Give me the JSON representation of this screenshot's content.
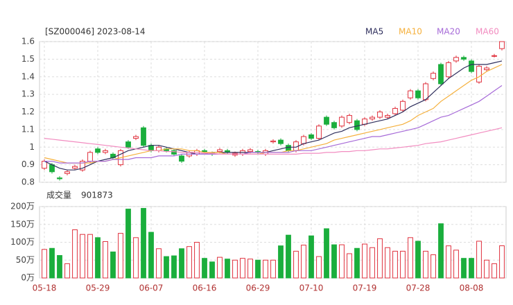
{
  "chart_data": {
    "type": "candlestick",
    "title": "[SZ000046] 2023-08-14",
    "categories": [
      "05-18",
      null,
      null,
      null,
      null,
      null,
      null,
      "05-29",
      null,
      null,
      null,
      null,
      null,
      null,
      "06-07",
      null,
      null,
      null,
      null,
      null,
      null,
      "06-16",
      null,
      null,
      null,
      null,
      null,
      null,
      "06-29",
      null,
      null,
      null,
      null,
      null,
      null,
      "07-10",
      null,
      null,
      null,
      null,
      null,
      null,
      "07-19",
      null,
      null,
      null,
      null,
      null,
      null,
      "07-28",
      null,
      null,
      null,
      null,
      null,
      null,
      "08-08",
      null,
      null,
      null,
      null
    ],
    "open": [
      0.88,
      0.9,
      0.825,
      0.85,
      0.88,
      0.87,
      0.92,
      0.99,
      0.97,
      0.96,
      0.9,
      1.03,
      1.05,
      1.11,
      1.01,
      0.98,
      0.99,
      0.98,
      0.95,
      0.95,
      0.96,
      0.98,
      0.965,
      0.975,
      0.98,
      0.955,
      0.96,
      0.975,
      0.975,
      0.96,
      1.03,
      1.04,
      1.01,
      0.98,
      1.02,
      1.07,
      1.05,
      1.17,
      1.14,
      1.12,
      1.14,
      1.15,
      1.13,
      1.16,
      1.17,
      1.17,
      1.19,
      1.21,
      1.28,
      1.32,
      1.27,
      1.39,
      1.47,
      1.4,
      1.49,
      1.51,
      1.49,
      1.37,
      1.44,
      1.52,
      1.56
    ],
    "high": [
      0.93,
      0.91,
      0.835,
      0.87,
      0.9,
      0.93,
      0.98,
      1.0,
      0.99,
      0.97,
      0.99,
      1.04,
      1.07,
      1.12,
      1.02,
      1.01,
      1.0,
      0.99,
      0.96,
      0.98,
      0.99,
      0.99,
      0.975,
      0.995,
      0.99,
      0.975,
      0.99,
      0.995,
      0.985,
      0.99,
      1.045,
      1.05,
      1.02,
      1.04,
      1.07,
      1.08,
      1.13,
      1.18,
      1.15,
      1.18,
      1.19,
      1.16,
      1.17,
      1.18,
      1.21,
      1.19,
      1.23,
      1.27,
      1.33,
      1.33,
      1.37,
      1.43,
      1.48,
      1.49,
      1.52,
      1.52,
      1.5,
      1.47,
      1.46,
      1.53,
      1.6
    ],
    "low": [
      0.87,
      0.85,
      0.81,
      0.84,
      0.87,
      0.86,
      0.91,
      0.96,
      0.96,
      0.93,
      0.89,
      0.99,
      1.04,
      1.0,
      0.97,
      0.97,
      0.97,
      0.95,
      0.91,
      0.94,
      0.95,
      0.965,
      0.95,
      0.965,
      0.96,
      0.945,
      0.95,
      0.965,
      0.96,
      0.95,
      1.02,
      1.01,
      0.97,
      0.97,
      1.01,
      1.04,
      1.04,
      1.12,
      1.1,
      1.11,
      1.13,
      1.09,
      1.12,
      1.15,
      1.16,
      1.16,
      1.18,
      1.2,
      1.27,
      1.27,
      1.26,
      1.38,
      1.35,
      1.39,
      1.48,
      1.49,
      1.42,
      1.36,
      1.43,
      1.51,
      1.55
    ],
    "close": [
      0.92,
      0.86,
      0.82,
      0.86,
      0.89,
      0.92,
      0.97,
      0.97,
      0.98,
      0.94,
      0.98,
      1.0,
      1.06,
      1.01,
      0.98,
      1.0,
      0.98,
      0.96,
      0.92,
      0.97,
      0.98,
      0.975,
      0.96,
      0.985,
      0.97,
      0.965,
      0.98,
      0.985,
      0.97,
      0.98,
      1.035,
      1.02,
      0.98,
      1.03,
      1.06,
      1.05,
      1.12,
      1.13,
      1.11,
      1.17,
      1.18,
      1.1,
      1.16,
      1.17,
      1.2,
      1.18,
      1.22,
      1.26,
      1.32,
      1.28,
      1.36,
      1.42,
      1.36,
      1.48,
      1.51,
      1.5,
      1.43,
      1.46,
      1.45,
      1.52,
      1.6
    ],
    "up_color": "#e0303c",
    "down_color": "#1aae3c",
    "ylim": [
      0.8,
      1.6
    ],
    "yticks": [
      0.8,
      0.9,
      1,
      1.1,
      1.2,
      1.3,
      1.4,
      1.5,
      1.6
    ],
    "grid": true,
    "series": [
      {
        "name": "MA5",
        "color": "#2e2e5c",
        "values": [
          0.92,
          0.9,
          0.88,
          0.87,
          0.87,
          0.88,
          0.9,
          0.92,
          0.93,
          0.94,
          0.96,
          0.98,
          0.99,
          1.0,
          1.01,
          1.01,
          1.0,
          0.99,
          0.98,
          0.97,
          0.96,
          0.96,
          0.97,
          0.97,
          0.97,
          0.97,
          0.97,
          0.97,
          0.97,
          0.97,
          0.98,
          0.99,
          1.0,
          1.0,
          1.02,
          1.03,
          1.04,
          1.06,
          1.08,
          1.09,
          1.11,
          1.12,
          1.13,
          1.14,
          1.15,
          1.16,
          1.18,
          1.2,
          1.23,
          1.25,
          1.27,
          1.31,
          1.35,
          1.39,
          1.42,
          1.45,
          1.47,
          1.47,
          1.47,
          1.48,
          1.49
        ]
      },
      {
        "name": "MA10",
        "color": "#f5b03c",
        "values": [
          0.94,
          0.93,
          0.92,
          0.91,
          0.91,
          0.91,
          0.91,
          0.92,
          0.92,
          0.93,
          0.94,
          0.95,
          0.96,
          0.97,
          0.98,
          0.98,
          0.99,
          0.99,
          0.99,
          0.98,
          0.98,
          0.97,
          0.97,
          0.97,
          0.96,
          0.96,
          0.96,
          0.96,
          0.96,
          0.97,
          0.97,
          0.97,
          0.98,
          0.98,
          0.99,
          1.0,
          1.01,
          1.02,
          1.04,
          1.05,
          1.06,
          1.07,
          1.08,
          1.09,
          1.1,
          1.11,
          1.12,
          1.13,
          1.15,
          1.18,
          1.2,
          1.22,
          1.26,
          1.29,
          1.32,
          1.35,
          1.38,
          1.4,
          1.43,
          1.45,
          1.47
        ]
      },
      {
        "name": "MA20",
        "color": "#a66ad8",
        "values": [
          0.92,
          0.92,
          0.91,
          0.91,
          0.91,
          0.91,
          0.92,
          0.92,
          0.92,
          0.93,
          0.93,
          0.93,
          0.94,
          0.94,
          0.94,
          0.95,
          0.95,
          0.95,
          0.96,
          0.96,
          0.96,
          0.96,
          0.96,
          0.96,
          0.96,
          0.96,
          0.96,
          0.97,
          0.97,
          0.97,
          0.97,
          0.97,
          0.97,
          0.98,
          0.98,
          0.98,
          0.99,
          1.0,
          1.01,
          1.02,
          1.03,
          1.04,
          1.05,
          1.06,
          1.06,
          1.07,
          1.08,
          1.09,
          1.1,
          1.11,
          1.13,
          1.15,
          1.17,
          1.18,
          1.2,
          1.22,
          1.24,
          1.26,
          1.29,
          1.32,
          1.35
        ]
      },
      {
        "name": "MA60",
        "color": "#f28cc0",
        "values": [
          1.05,
          1.045,
          1.04,
          1.035,
          1.03,
          1.025,
          1.02,
          1.015,
          1.01,
          1.005,
          1.0,
          0.995,
          0.99,
          0.985,
          0.98,
          0.98,
          0.975,
          0.975,
          0.97,
          0.97,
          0.97,
          0.965,
          0.965,
          0.96,
          0.96,
          0.96,
          0.96,
          0.96,
          0.96,
          0.96,
          0.96,
          0.96,
          0.96,
          0.96,
          0.965,
          0.965,
          0.965,
          0.97,
          0.97,
          0.975,
          0.975,
          0.98,
          0.98,
          0.985,
          0.99,
          0.99,
          0.995,
          1.0,
          1.005,
          1.01,
          1.02,
          1.025,
          1.03,
          1.04,
          1.05,
          1.06,
          1.07,
          1.08,
          1.09,
          1.1,
          1.11
        ]
      }
    ],
    "volume": {
      "title": "成交量",
      "last": 901873,
      "values": [
        80,
        83,
        63,
        40,
        135,
        122,
        122,
        113,
        102,
        73,
        125,
        193,
        113,
        195,
        128,
        82,
        60,
        62,
        82,
        88,
        100,
        55,
        45,
        58,
        53,
        50,
        55,
        53,
        50,
        50,
        50,
        90,
        120,
        75,
        92,
        118,
        60,
        138,
        93,
        93,
        68,
        83,
        95,
        85,
        110,
        85,
        75,
        75,
        113,
        103,
        75,
        65,
        152,
        90,
        78,
        55,
        55,
        103,
        50,
        40,
        90.1873
      ],
      "ylim": [
        0,
        200
      ],
      "yticks": [
        {
          "value": 0,
          "label": "0万"
        },
        {
          "value": 50,
          "label": "50万"
        },
        {
          "value": 100,
          "label": "100万"
        },
        {
          "value": 150,
          "label": "150万"
        },
        {
          "value": 200,
          "label": "200万"
        }
      ]
    }
  }
}
